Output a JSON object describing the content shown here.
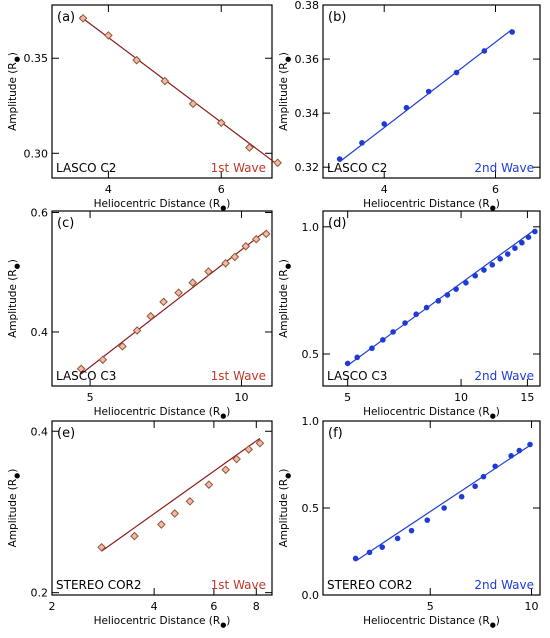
{
  "chart_data": [
    {
      "type": "scatter",
      "panel_label": "(a)",
      "xlabel": "Heliocentric Distance (R",
      "ylabel": "Amplitude (R",
      "unit_subscript": "●",
      "xlim": [
        3.0,
        6.9
      ],
      "ylim": [
        0.287,
        0.378
      ],
      "xscale": "linear",
      "yscale": "linear",
      "xticks": [
        4,
        6
      ],
      "yticks": [
        0.3,
        0.35
      ],
      "xtick_labels": [
        "4",
        "6"
      ],
      "ytick_labels": [
        "0.30",
        "0.35"
      ],
      "instrument_label": "LASCO C2",
      "wave_label": "1st Wave",
      "wave_color": "#c0392b",
      "fit_color": "#8b1a1a",
      "marker": "diamond",
      "marker_fill": "#f5b7b1",
      "points": [
        [
          3.55,
          0.371
        ],
        [
          4.0,
          0.362
        ],
        [
          4.5,
          0.349
        ],
        [
          5.0,
          0.338
        ],
        [
          5.5,
          0.326
        ],
        [
          6.0,
          0.316
        ],
        [
          6.5,
          0.303
        ],
        [
          7.0,
          0.295
        ]
      ],
      "fit": [
        [
          3.5,
          0.372
        ],
        [
          7.0,
          0.294
        ]
      ]
    },
    {
      "type": "scatter",
      "panel_label": "(b)",
      "xlabel": "Heliocentric Distance (R",
      "ylabel": "Amplitude (R",
      "unit_subscript": "●",
      "xlim": [
        2.9,
        6.8
      ],
      "ylim": [
        0.316,
        0.38
      ],
      "xscale": "linear",
      "yscale": "linear",
      "xticks": [
        4,
        6
      ],
      "yticks": [
        0.32,
        0.34,
        0.36,
        0.38
      ],
      "xtick_labels": [
        "4",
        "6"
      ],
      "ytick_labels": [
        "0.32",
        "0.34",
        "0.36",
        "0.38"
      ],
      "instrument_label": "LASCO C2",
      "wave_label": "2nd Wave",
      "wave_color": "#1f3bd6",
      "fit_color": "#1f3bd6",
      "marker": "circle",
      "marker_fill": "#1f3bd6",
      "points": [
        [
          3.2,
          0.323
        ],
        [
          3.6,
          0.329
        ],
        [
          4.0,
          0.336
        ],
        [
          4.4,
          0.342
        ],
        [
          4.8,
          0.348
        ],
        [
          5.3,
          0.355
        ],
        [
          5.8,
          0.363
        ],
        [
          6.3,
          0.37
        ]
      ],
      "fit": [
        [
          3.2,
          0.322
        ],
        [
          6.3,
          0.371
        ]
      ]
    },
    {
      "type": "scatter",
      "panel_label": "(c)",
      "xlabel": "Heliocentric Distance (R",
      "ylabel": "Amplitude (R",
      "unit_subscript": "●",
      "xlim": [
        4.2,
        11.5
      ],
      "ylim": [
        0.333,
        0.603
      ],
      "xscale": "log",
      "yscale": "log",
      "xticks": [
        5,
        10
      ],
      "yticks": [
        0.4,
        0.6
      ],
      "xtick_labels": [
        "5",
        "10"
      ],
      "ytick_labels": [
        "0.4",
        "0.6"
      ],
      "instrument_label": "LASCO C3",
      "wave_label": "1st Wave",
      "wave_color": "#c0392b",
      "fit_color": "#8b1a1a",
      "marker": "diamond",
      "marker_fill": "#f5b7b1",
      "points": [
        [
          4.8,
          0.353
        ],
        [
          5.3,
          0.364
        ],
        [
          5.8,
          0.381
        ],
        [
          6.2,
          0.402
        ],
        [
          6.6,
          0.422
        ],
        [
          7.0,
          0.443
        ],
        [
          7.5,
          0.457
        ],
        [
          8.0,
          0.473
        ],
        [
          8.6,
          0.491
        ],
        [
          9.3,
          0.505
        ],
        [
          9.7,
          0.516
        ],
        [
          10.2,
          0.535
        ],
        [
          10.7,
          0.548
        ],
        [
          11.2,
          0.558
        ]
      ],
      "fit": [
        [
          4.8,
          0.347
        ],
        [
          11.2,
          0.564
        ]
      ]
    },
    {
      "type": "scatter",
      "panel_label": "(d)",
      "xlabel": "Heliocentric Distance (R",
      "ylabel": "Amplitude (R",
      "unit_subscript": "●",
      "xlim": [
        4.3,
        16.2
      ],
      "ylim": [
        0.42,
        1.09
      ],
      "xscale": "log",
      "yscale": "log",
      "xticks": [
        5,
        10,
        15
      ],
      "yticks": [
        0.5,
        1.0
      ],
      "xtick_labels": [
        "5",
        "10",
        "15"
      ],
      "ytick_labels": [
        "0.5",
        "1.0"
      ],
      "instrument_label": "LASCO C3",
      "wave_label": "2nd Wave",
      "wave_color": "#1f3bd6",
      "fit_color": "#1f3bd6",
      "marker": "circle",
      "marker_fill": "#1f3bd6",
      "points": [
        [
          5.0,
          0.475
        ],
        [
          5.3,
          0.491
        ],
        [
          5.8,
          0.516
        ],
        [
          6.2,
          0.54
        ],
        [
          6.6,
          0.564
        ],
        [
          7.1,
          0.592
        ],
        [
          7.6,
          0.621
        ],
        [
          8.1,
          0.644
        ],
        [
          8.7,
          0.668
        ],
        [
          9.2,
          0.69
        ],
        [
          9.7,
          0.712
        ],
        [
          10.3,
          0.737
        ],
        [
          10.9,
          0.766
        ],
        [
          11.5,
          0.79
        ],
        [
          12.1,
          0.813
        ],
        [
          12.7,
          0.84
        ],
        [
          13.3,
          0.862
        ],
        [
          13.9,
          0.89
        ],
        [
          14.5,
          0.917
        ],
        [
          15.1,
          0.945
        ],
        [
          15.7,
          0.975
        ]
      ],
      "fit": [
        [
          5.0,
          0.47
        ],
        [
          15.7,
          0.985
        ]
      ]
    },
    {
      "type": "scatter",
      "panel_label": "(e)",
      "xlabel": "Heliocentric Distance (R",
      "ylabel": "Amplitude (R",
      "unit_subscript": "●",
      "xlim": [
        2.0,
        8.9
      ],
      "ylim": [
        0.198,
        0.418
      ],
      "xscale": "log",
      "yscale": "log",
      "xticks": [
        2,
        4,
        6,
        8
      ],
      "yticks": [
        0.2,
        0.4
      ],
      "xtick_labels": [
        "2",
        "4",
        "6",
        "8"
      ],
      "ytick_labels": [
        "0.2",
        "0.4"
      ],
      "instrument_label": "STEREO COR2",
      "wave_label": "1st Wave",
      "wave_color": "#c0392b",
      "fit_color": "#8b1a1a",
      "marker": "diamond",
      "marker_fill": "#f5b7b1",
      "points": [
        [
          2.8,
          0.243
        ],
        [
          3.5,
          0.255
        ],
        [
          4.2,
          0.268
        ],
        [
          4.6,
          0.281
        ],
        [
          5.1,
          0.296
        ],
        [
          5.8,
          0.318
        ],
        [
          6.5,
          0.339
        ],
        [
          7.0,
          0.355
        ],
        [
          7.6,
          0.37
        ],
        [
          8.2,
          0.38
        ]
      ],
      "fit": [
        [
          2.8,
          0.239
        ],
        [
          8.2,
          0.388
        ]
      ]
    },
    {
      "type": "scatter",
      "panel_label": "(f)",
      "xlabel": "Heliocentric Distance (R",
      "ylabel": "Amplitude (R",
      "unit_subscript": "●",
      "xlim": [
        2.4,
        10.6
      ],
      "ylim": [
        0.0,
        1.0
      ],
      "xscale": "log",
      "yscale": "linear",
      "xticks": [
        5,
        10
      ],
      "yticks": [
        0.0,
        0.5,
        1.0
      ],
      "xtick_labels": [
        "5",
        "10"
      ],
      "ytick_labels": [
        "0.0",
        "0.5",
        "1.0"
      ],
      "instrument_label": "STEREO COR2",
      "wave_label": "2nd Wave",
      "wave_color": "#1f3bd6",
      "fit_color": "#1f3bd6",
      "marker": "circle",
      "marker_fill": "#1f3bd6",
      "points": [
        [
          3.0,
          0.21
        ],
        [
          3.3,
          0.245
        ],
        [
          3.6,
          0.275
        ],
        [
          4.0,
          0.325
        ],
        [
          4.4,
          0.37
        ],
        [
          4.9,
          0.43
        ],
        [
          5.5,
          0.5
        ],
        [
          6.2,
          0.565
        ],
        [
          6.8,
          0.625
        ],
        [
          7.2,
          0.68
        ],
        [
          7.8,
          0.74
        ],
        [
          8.7,
          0.8
        ],
        [
          9.2,
          0.83
        ],
        [
          9.9,
          0.865
        ]
      ],
      "fit": [
        [
          3.0,
          0.195
        ],
        [
          9.9,
          0.86
        ]
      ]
    }
  ]
}
